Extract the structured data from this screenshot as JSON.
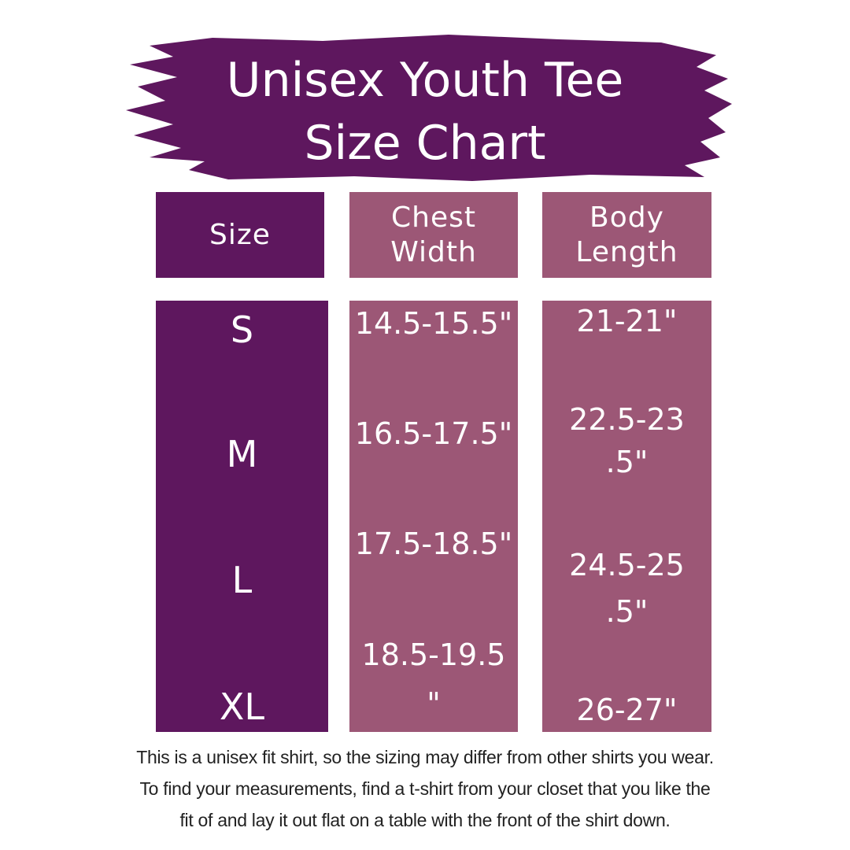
{
  "title": {
    "line1": "Unisex Youth Tee",
    "line2": "Size Chart"
  },
  "colors": {
    "dark_purple": "#5e175e",
    "mauve": "#9c5776",
    "text": "#ffffff"
  },
  "headers": {
    "size": [
      "Size"
    ],
    "chest": [
      "Chest",
      "Width"
    ],
    "body": [
      "Body",
      "Length"
    ]
  },
  "rows": [
    {
      "size": "S",
      "chest": [
        "14.5-15.5\""
      ],
      "body": [
        "21-21\""
      ]
    },
    {
      "size": "M",
      "chest": [
        "16.5-17.5\""
      ],
      "body": [
        "22.5-23",
        ".5\""
      ]
    },
    {
      "size": "L",
      "chest": [
        "17.5-18.5\""
      ],
      "body": [
        "24.5-25",
        ".5\""
      ]
    },
    {
      "size": "XL",
      "chest": [
        "18.5-19.5",
        "\""
      ],
      "body": [
        "26-27\""
      ]
    }
  ],
  "note": [
    "This is a unisex fit shirt, so the sizing may differ from other shirts you wear.",
    "To find your measurements, find a t-shirt from your closet that you like the",
    "fit of and lay it out flat on a table with the front of the shirt down."
  ]
}
